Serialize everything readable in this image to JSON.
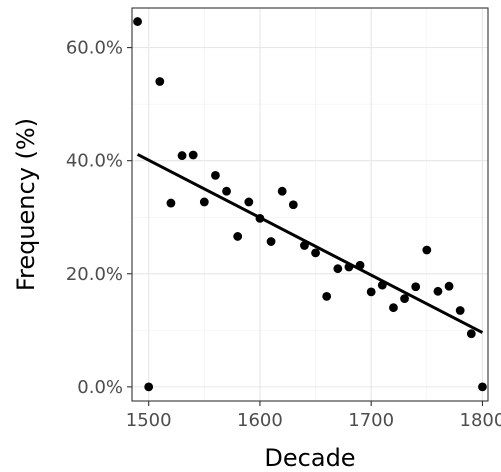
{
  "chart_data": {
    "type": "scatter",
    "title": "",
    "xlabel": "Decade",
    "ylabel": "Frequency (%)",
    "xlim": [
      1485,
      1805
    ],
    "ylim": [
      -2.5,
      67
    ],
    "x_ticks": [
      1500,
      1600,
      1700,
      1800
    ],
    "x_tick_labels": [
      "1500",
      "1600",
      "1700",
      "1800"
    ],
    "y_ticks": [
      0,
      20,
      40,
      60
    ],
    "y_tick_labels": [
      "0.0%",
      "20.0%",
      "40.0%",
      "60.0%"
    ],
    "grid": true,
    "legend": "none",
    "points": [
      {
        "x": 1490,
        "y": 64.6
      },
      {
        "x": 1500,
        "y": 0.0
      },
      {
        "x": 1510,
        "y": 54.0
      },
      {
        "x": 1520,
        "y": 32.5
      },
      {
        "x": 1530,
        "y": 40.9
      },
      {
        "x": 1540,
        "y": 41.0
      },
      {
        "x": 1550,
        "y": 32.7
      },
      {
        "x": 1560,
        "y": 37.4
      },
      {
        "x": 1570,
        "y": 34.6
      },
      {
        "x": 1580,
        "y": 26.6
      },
      {
        "x": 1590,
        "y": 32.7
      },
      {
        "x": 1600,
        "y": 29.8
      },
      {
        "x": 1610,
        "y": 25.7
      },
      {
        "x": 1620,
        "y": 34.6
      },
      {
        "x": 1630,
        "y": 32.2
      },
      {
        "x": 1640,
        "y": 25.0
      },
      {
        "x": 1650,
        "y": 23.7
      },
      {
        "x": 1660,
        "y": 16.0
      },
      {
        "x": 1670,
        "y": 20.9
      },
      {
        "x": 1680,
        "y": 21.2
      },
      {
        "x": 1690,
        "y": 21.5
      },
      {
        "x": 1700,
        "y": 16.8
      },
      {
        "x": 1710,
        "y": 18.0
      },
      {
        "x": 1720,
        "y": 14.0
      },
      {
        "x": 1730,
        "y": 15.6
      },
      {
        "x": 1740,
        "y": 17.7
      },
      {
        "x": 1750,
        "y": 24.2
      },
      {
        "x": 1760,
        "y": 16.9
      },
      {
        "x": 1770,
        "y": 17.8
      },
      {
        "x": 1780,
        "y": 13.5
      },
      {
        "x": 1790,
        "y": 9.4
      },
      {
        "x": 1800,
        "y": 0.0
      }
    ],
    "trend_line": {
      "x": [
        1490,
        1800
      ],
      "y": [
        41.1,
        9.6
      ]
    }
  }
}
